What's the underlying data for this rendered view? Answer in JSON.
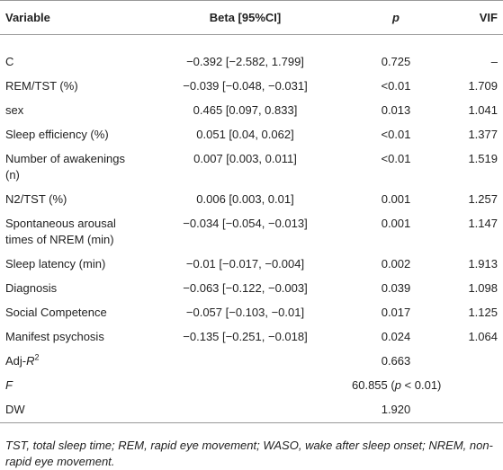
{
  "table": {
    "header": [
      "Variable",
      "Beta [95%CI]",
      "p",
      "VIF"
    ],
    "header_italic": [
      false,
      false,
      true,
      false
    ],
    "rows": [
      [
        "C",
        "−0.392 [−2.582, 1.799]",
        "0.725",
        "–"
      ],
      [
        "REM/TST (%)",
        "−0.039 [−0.048, −0.031]",
        "<0.01",
        "1.709"
      ],
      [
        "sex",
        "0.465 [0.097, 0.833]",
        "0.013",
        "1.041"
      ],
      [
        "Sleep efficiency (%)",
        "0.051 [0.04, 0.062]",
        "<0.01",
        "1.377"
      ],
      [
        "Number of awakenings (n)",
        "0.007 [0.003, 0.011]",
        "<0.01",
        "1.519"
      ],
      [
        "N2/TST (%)",
        "0.006 [0.003, 0.01]",
        "0.001",
        "1.257"
      ],
      [
        "Spontaneous arousal times of NREM (min)",
        "−0.034 [−0.054, −0.013]",
        "0.001",
        "1.147"
      ],
      [
        "Sleep latency (min)",
        "−0.01 [−0.017, −0.004]",
        "0.002",
        "1.913"
      ],
      [
        "Diagnosis",
        "−0.063 [−0.122, −0.003]",
        "0.039",
        "1.098"
      ],
      [
        "Social Competence",
        "−0.057 [−0.103, −0.01]",
        "0.017",
        "1.125"
      ],
      [
        "Manifest psychosis",
        "−0.135 [−0.251, −0.018]",
        "0.024",
        "1.064"
      ],
      [
        {
          "parts": [
            {
              "text": "Adj-"
            },
            {
              "text": "R",
              "italic": true
            },
            {
              "text": "2",
              "sup": true
            }
          ]
        },
        null,
        "0.663",
        null
      ],
      [
        {
          "parts": [
            {
              "text": "F",
              "italic": true
            }
          ]
        },
        null,
        {
          "parts": [
            {
              "text": "60.855 ("
            },
            {
              "text": "p",
              "italic": true
            },
            {
              "text": " < 0.01)"
            }
          ]
        },
        null
      ],
      [
        "DW",
        null,
        "1.920",
        null
      ]
    ],
    "footnote": "TST, total sleep time; REM, rapid eye movement; WASO, wake after sleep onset; NREM, non-rapid eye movement."
  }
}
